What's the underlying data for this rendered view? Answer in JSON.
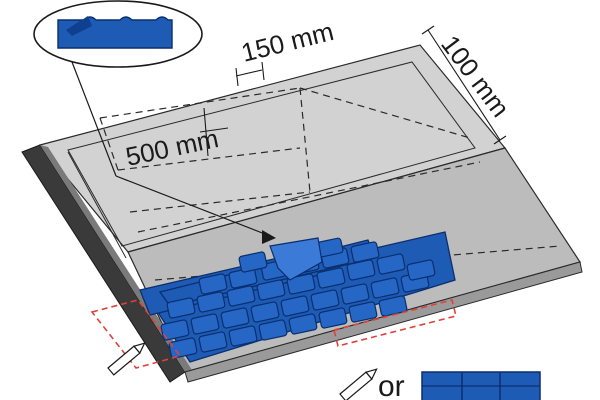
{
  "dimensions": {
    "width_side": "150 mm",
    "depth_side": "100 mm",
    "inner_offset": "500 mm"
  },
  "bottom_legend": {
    "or_text": "or"
  },
  "colors": {
    "shingle_blue": "#1e5bb5",
    "shingle_dark": "#0f3f8f",
    "deck_light": "#d0d0d0",
    "deck_mid": "#bdbdbd",
    "edge_dark": "#3a3a3a",
    "marker_red": "#e0413a",
    "line": "#2a2a2a"
  },
  "icons": [
    "pencil-icon",
    "shingle-strip-icon",
    "magnifier-callout"
  ]
}
